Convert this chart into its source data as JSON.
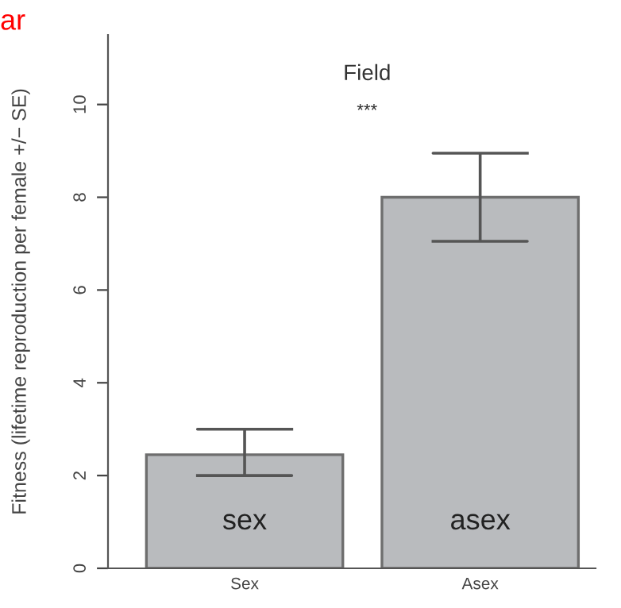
{
  "chart_data": {
    "type": "bar",
    "title": "Field",
    "ylabel": "Fitness (lifetime reproduction per female +/− SE)",
    "categories": [
      "Sex",
      "Asex"
    ],
    "values": [
      2.45,
      8.0
    ],
    "errors": [
      [
        2.0,
        3.0
      ],
      [
        7.05,
        8.95
      ]
    ],
    "color": "#b9bbbe",
    "ylim": [
      0,
      11.5
    ],
    "yticks": [
      0,
      2,
      4,
      6,
      8,
      10
    ],
    "grid": false,
    "annotations": [
      "***",
      "sex",
      "asex",
      "ar"
    ]
  }
}
